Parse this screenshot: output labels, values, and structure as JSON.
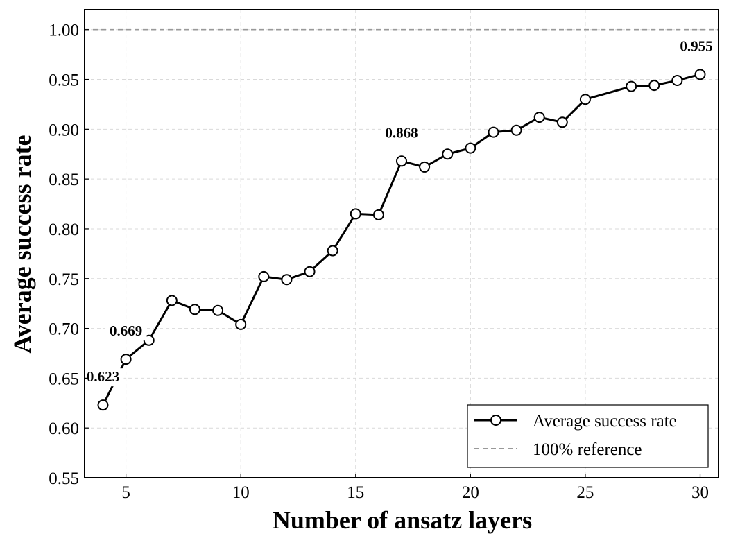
{
  "chart_data": {
    "type": "line",
    "xlabel": "Number of ansatz layers",
    "ylabel": "Average success rate",
    "xlim": [
      3.2,
      30.8
    ],
    "ylim": [
      0.55,
      1.02
    ],
    "x_ticks": [
      5,
      10,
      15,
      20,
      25,
      30
    ],
    "y_ticks": [
      0.55,
      0.6,
      0.65,
      0.7,
      0.75,
      0.8,
      0.85,
      0.9,
      0.95,
      1.0
    ],
    "grid": true,
    "legend_position": "bottom-right",
    "series": [
      {
        "name": "Average success rate",
        "style": "solid line with open circle markers",
        "color": "#000000",
        "x": [
          4,
          5,
          6,
          7,
          8,
          9,
          10,
          11,
          12,
          13,
          14,
          15,
          16,
          17,
          18,
          19,
          20,
          21,
          22,
          23,
          24,
          25,
          27,
          28,
          29,
          30
        ],
        "y": [
          0.623,
          0.669,
          0.688,
          0.728,
          0.719,
          0.718,
          0.704,
          0.752,
          0.749,
          0.757,
          0.778,
          0.815,
          0.814,
          0.868,
          0.862,
          0.875,
          0.881,
          0.897,
          0.899,
          0.912,
          0.907,
          0.93,
          0.943,
          0.944,
          0.949,
          0.955
        ]
      },
      {
        "name": "100% reference",
        "style": "dashed line",
        "color": "#999999",
        "y": 1.0
      }
    ],
    "annotations": [
      {
        "text": "0.623",
        "x": 4,
        "y": 0.623
      },
      {
        "text": "0.669",
        "x": 5,
        "y": 0.669
      },
      {
        "text": "0.868",
        "x": 17,
        "y": 0.868
      },
      {
        "text": "0.955",
        "x": 30,
        "y": 0.955
      }
    ]
  }
}
